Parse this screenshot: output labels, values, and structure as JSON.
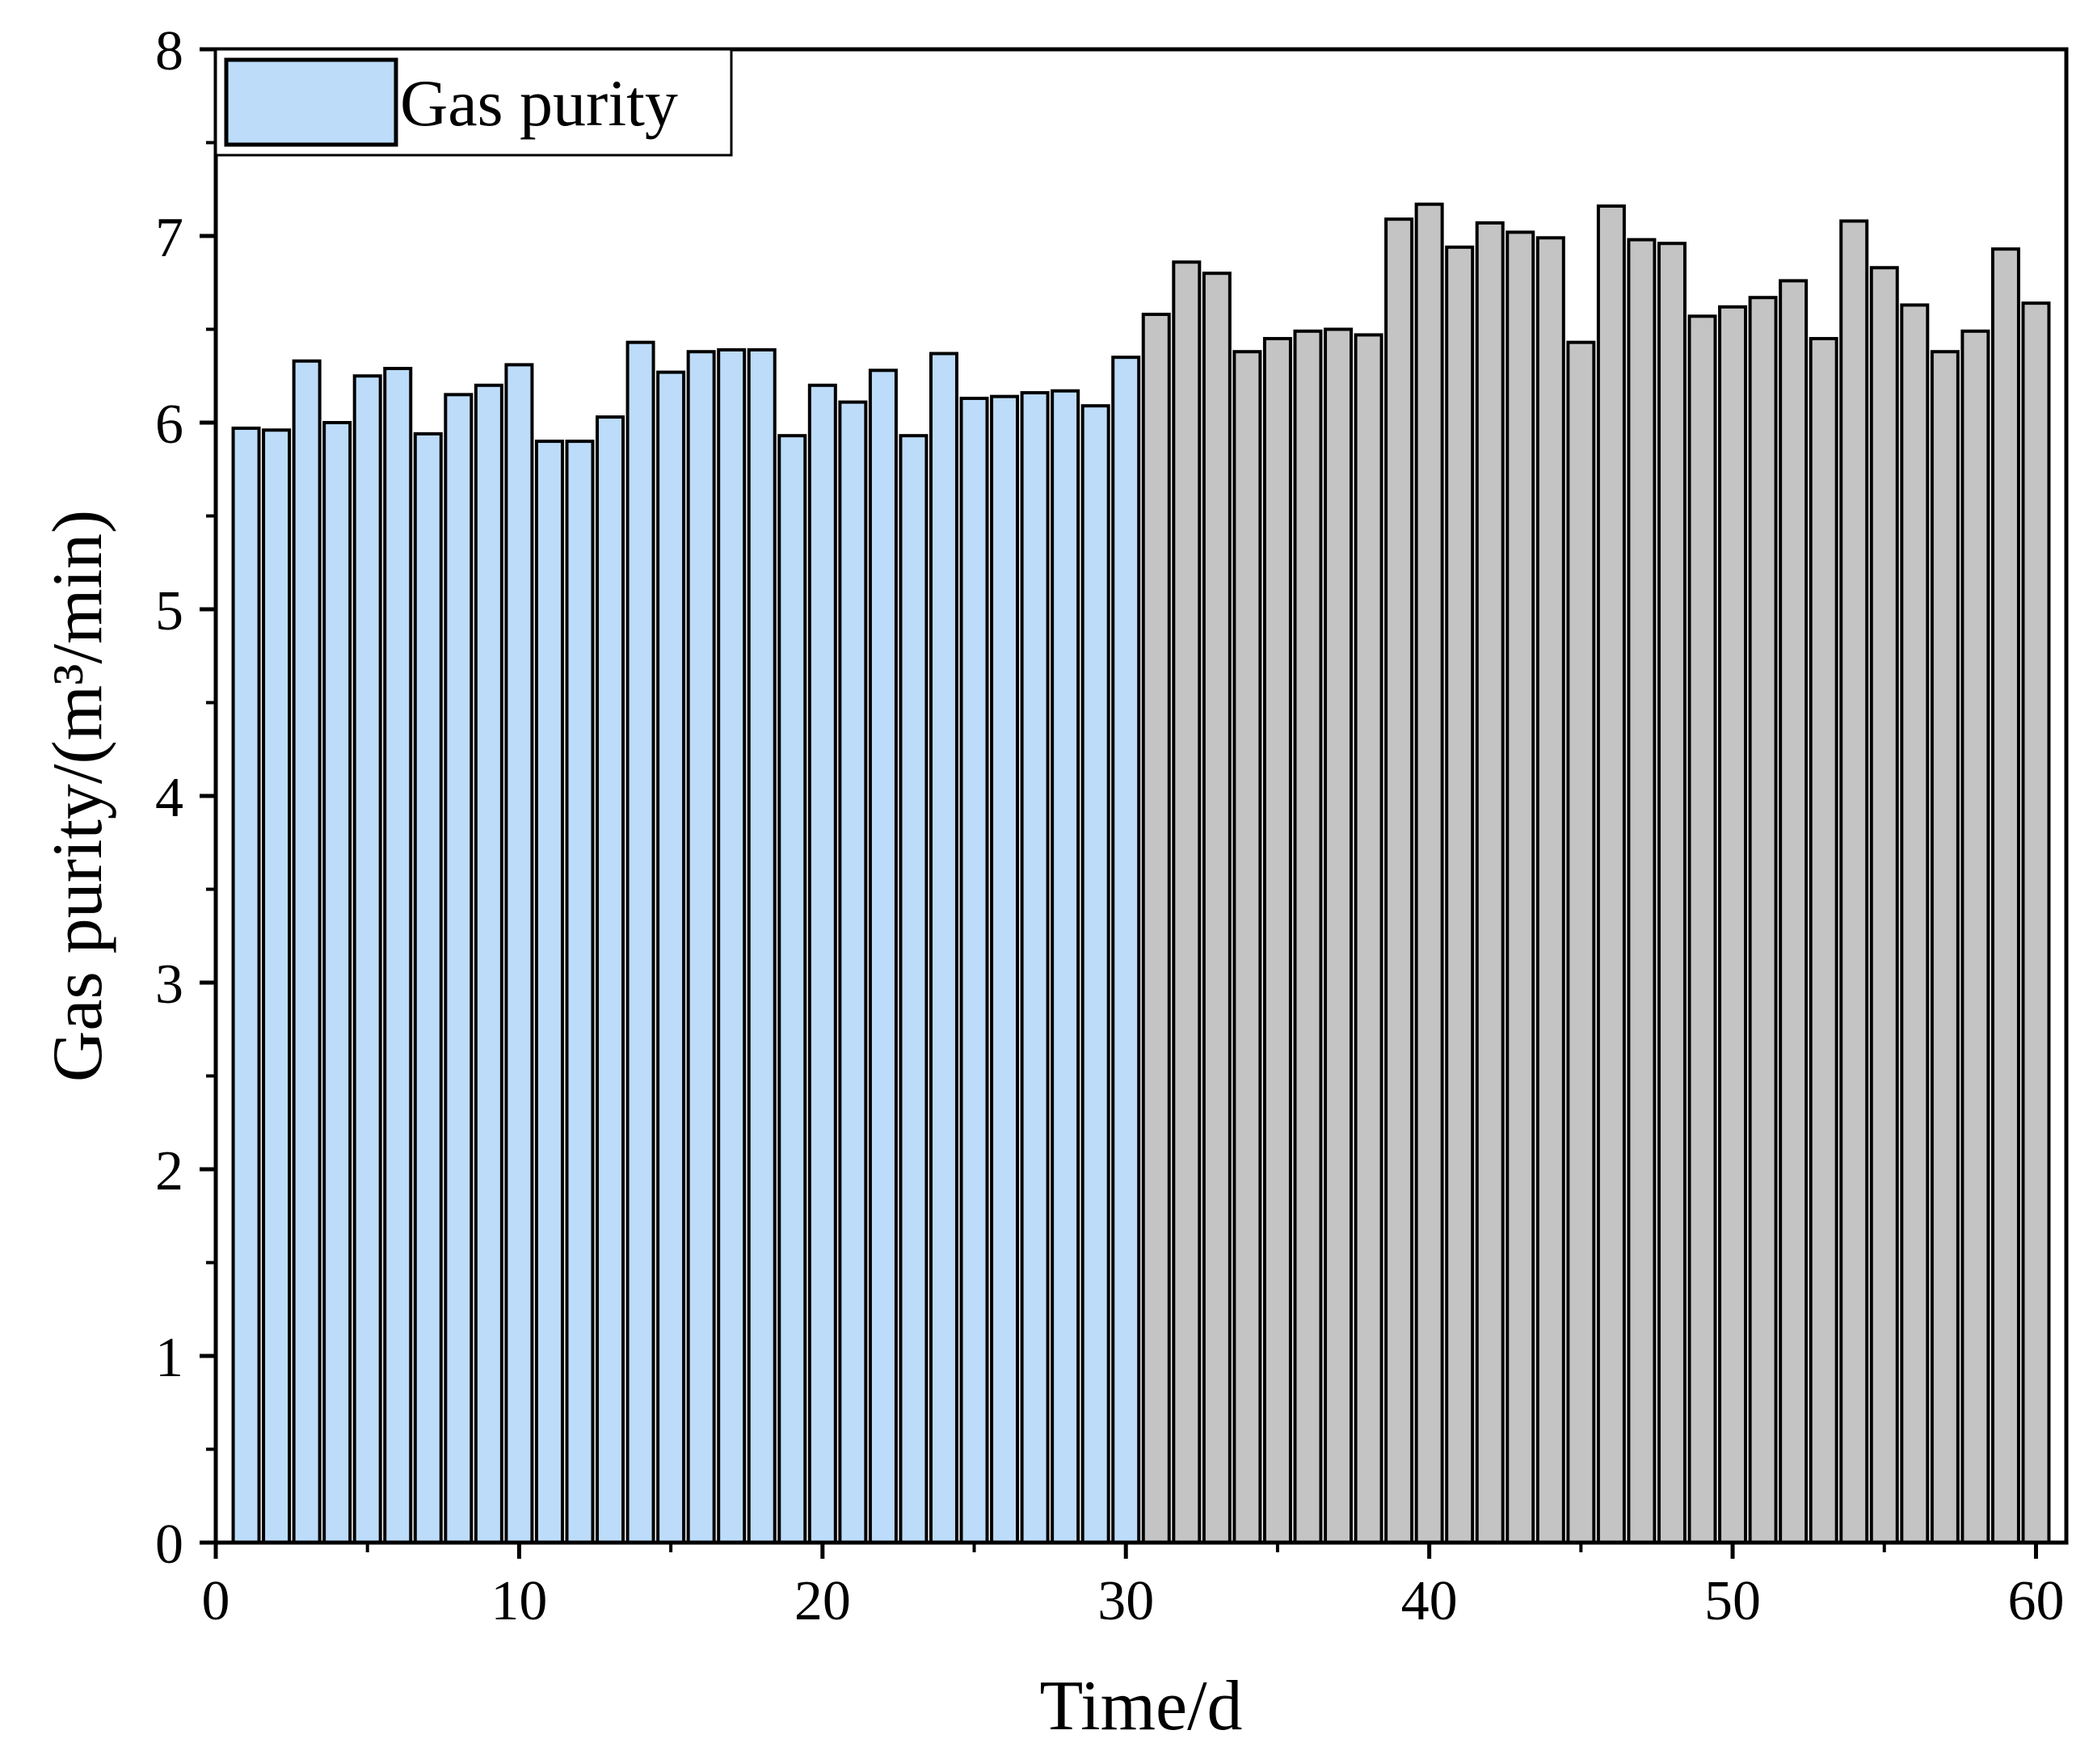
{
  "chart_data": {
    "type": "bar",
    "xlabel": "Time/d",
    "ylabel": "Gas purity/(m³/min)",
    "xlim": [
      0,
      61
    ],
    "ylim": [
      0,
      8
    ],
    "xticks": [
      0,
      10,
      20,
      30,
      40,
      50,
      60
    ],
    "yticks": [
      0,
      1,
      2,
      3,
      4,
      5,
      6,
      7,
      8
    ],
    "grid": false,
    "legend_position": "top-left",
    "legend": [
      {
        "label": "Gas purity",
        "color": "#bcdcfa"
      }
    ],
    "colors": {
      "group1": "#bcdcfa",
      "group2": "#c4c4c4",
      "edge": "#000000"
    },
    "categories": [
      1,
      2,
      3,
      4,
      5,
      6,
      7,
      8,
      9,
      10,
      11,
      12,
      13,
      14,
      15,
      16,
      17,
      18,
      19,
      20,
      21,
      22,
      23,
      24,
      25,
      26,
      27,
      28,
      29,
      30,
      31,
      32,
      33,
      34,
      35,
      36,
      37,
      38,
      39,
      40,
      41,
      42,
      43,
      44,
      45,
      46,
      47,
      48,
      49,
      50,
      51,
      52,
      53,
      54,
      55,
      56,
      57,
      58,
      59,
      60
    ],
    "series": [
      {
        "name": "Gas purity",
        "color": "#bcdcfa",
        "x": [
          1,
          2,
          3,
          4,
          5,
          6,
          7,
          8,
          9,
          10,
          11,
          12,
          13,
          14,
          15,
          16,
          17,
          18,
          19,
          20,
          21,
          22,
          23,
          24,
          25,
          26,
          27,
          28,
          29,
          30
        ],
        "values": [
          5.97,
          5.96,
          6.33,
          6.0,
          6.25,
          6.29,
          5.94,
          6.15,
          6.2,
          6.31,
          5.9,
          5.9,
          6.03,
          6.43,
          6.27,
          6.38,
          6.39,
          6.39,
          5.93,
          6.2,
          6.11,
          6.28,
          5.93,
          6.37,
          6.13,
          6.14,
          6.16,
          6.17,
          6.09,
          6.35
        ]
      },
      {
        "color": "#c4c4c4",
        "x": [
          31,
          32,
          33,
          34,
          35,
          36,
          37,
          38,
          39,
          40,
          41,
          42,
          43,
          44,
          45,
          46,
          47,
          48,
          49,
          50,
          51,
          52,
          53,
          54,
          55,
          56,
          57,
          58,
          59,
          60
        ],
        "values": [
          6.58,
          6.86,
          6.8,
          6.38,
          6.45,
          6.49,
          6.5,
          6.47,
          7.09,
          7.17,
          6.94,
          7.07,
          7.02,
          6.99,
          6.43,
          7.16,
          6.98,
          6.96,
          6.57,
          6.62,
          6.67,
          6.76,
          6.45,
          7.08,
          6.83,
          6.63,
          6.38,
          6.49,
          6.93,
          6.64
        ]
      }
    ]
  }
}
